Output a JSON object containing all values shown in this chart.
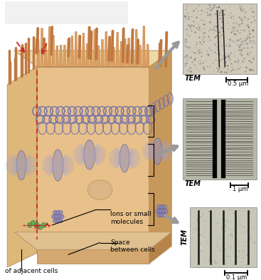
{
  "background_color": "#ffffff",
  "cell_face_color": "#e8c08a",
  "cell_right_color": "#c8985a",
  "cell_top_color": "#edd9a8",
  "cell_bottom_color": "#d4a870",
  "left_panel_color": "#d4a870",
  "microvilli_color": "#d4935a",
  "microvilli_tip": "#c07840",
  "tj_color": "#7070aa",
  "desmosome_color": "#9090c0",
  "gap_fill": "#9090bb",
  "mol_green": "#55aa55",
  "red_color": "#cc2222",
  "gray_arrow": "#aaaaaa",
  "labels": {
    "ions": "Ions or small\nmolecules",
    "space": "Space\nbetween cells",
    "adjacent": "of adjacent cells",
    "tem": "TEM",
    "scale1": "0.5 μm",
    "scale2": "1 μm",
    "scale3": "0.1 μm"
  },
  "figsize": [
    3.67,
    3.93
  ],
  "dpi": 100
}
